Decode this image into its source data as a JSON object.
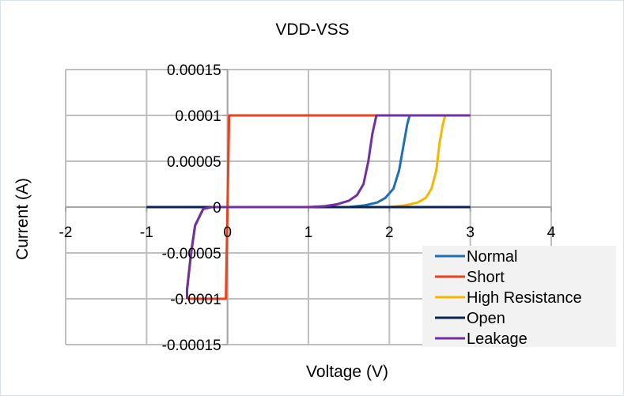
{
  "chart_data": {
    "type": "line",
    "title": "VDD-VSS",
    "xlabel": "Voltage (V)",
    "ylabel": "Current (A)",
    "xlim": [
      -2,
      4
    ],
    "ylim": [
      -0.00015,
      0.00015
    ],
    "xticks": [
      -2,
      -1,
      0,
      1,
      2,
      3,
      4
    ],
    "xtick_labels": [
      "-2",
      "-1",
      "0",
      "1",
      "2",
      "3",
      "4"
    ],
    "yticks": [
      -0.00015,
      -0.0001,
      -5e-05,
      0,
      5e-05,
      0.0001,
      0.00015
    ],
    "ytick_labels": [
      "-0.00015",
      "-0.0001",
      "-0.00005",
      "0",
      "0.00005",
      "0.0001",
      "0.00015"
    ],
    "grid": true,
    "legend": "bottom-right",
    "series": [
      {
        "name": "Normal",
        "color": "#1f6fb4",
        "points": [
          [
            -0.5,
            -0.0001
          ],
          [
            -0.5,
            -9e-05
          ],
          [
            -0.45,
            -5e-05
          ],
          [
            -0.4,
            -2e-05
          ],
          [
            -0.3,
            -2e-06
          ],
          [
            -0.2,
            0
          ],
          [
            1.5,
            0
          ],
          [
            1.7,
            2e-06
          ],
          [
            1.85,
            5e-06
          ],
          [
            1.95,
            1e-05
          ],
          [
            2.05,
            2e-05
          ],
          [
            2.12,
            4e-05
          ],
          [
            2.18,
            7e-05
          ],
          [
            2.22,
            9e-05
          ],
          [
            2.25,
            0.0001
          ],
          [
            3.0,
            0.0001
          ]
        ]
      },
      {
        "name": "Short",
        "color": "#e8431c",
        "points": [
          [
            -0.5,
            -0.0001
          ],
          [
            -0.02,
            -0.0001
          ],
          [
            0.02,
            0.0001
          ],
          [
            3.0,
            0.0001
          ]
        ]
      },
      {
        "name": "High Resistance",
        "color": "#f5b800",
        "points": [
          [
            -0.5,
            -0.0001
          ],
          [
            -0.5,
            -9e-05
          ],
          [
            -0.45,
            -5e-05
          ],
          [
            -0.4,
            -2e-05
          ],
          [
            -0.3,
            -2e-06
          ],
          [
            -0.2,
            0
          ],
          [
            2.0,
            0
          ],
          [
            2.2,
            2e-06
          ],
          [
            2.35,
            5e-06
          ],
          [
            2.45,
            1e-05
          ],
          [
            2.52,
            2e-05
          ],
          [
            2.58,
            4e-05
          ],
          [
            2.62,
            7e-05
          ],
          [
            2.66,
            9e-05
          ],
          [
            2.69,
            0.0001
          ],
          [
            3.0,
            0.0001
          ]
        ]
      },
      {
        "name": "Open",
        "color": "#0b2350",
        "points": [
          [
            -1.0,
            0
          ],
          [
            3.0,
            0
          ]
        ]
      },
      {
        "name": "Leakage",
        "color": "#7030a0",
        "points": [
          [
            -0.5,
            -0.0001
          ],
          [
            -0.5,
            -9e-05
          ],
          [
            -0.45,
            -5e-05
          ],
          [
            -0.4,
            -2e-05
          ],
          [
            -0.3,
            -2e-06
          ],
          [
            -0.2,
            0
          ],
          [
            1.0,
            0
          ],
          [
            1.2,
            1e-06
          ],
          [
            1.35,
            3e-06
          ],
          [
            1.5,
            7e-06
          ],
          [
            1.6,
            1.3e-05
          ],
          [
            1.68,
            2.5e-05
          ],
          [
            1.74,
            5e-05
          ],
          [
            1.79,
            8e-05
          ],
          [
            1.84,
            0.0001
          ],
          [
            3.0,
            0.0001
          ]
        ]
      }
    ]
  }
}
